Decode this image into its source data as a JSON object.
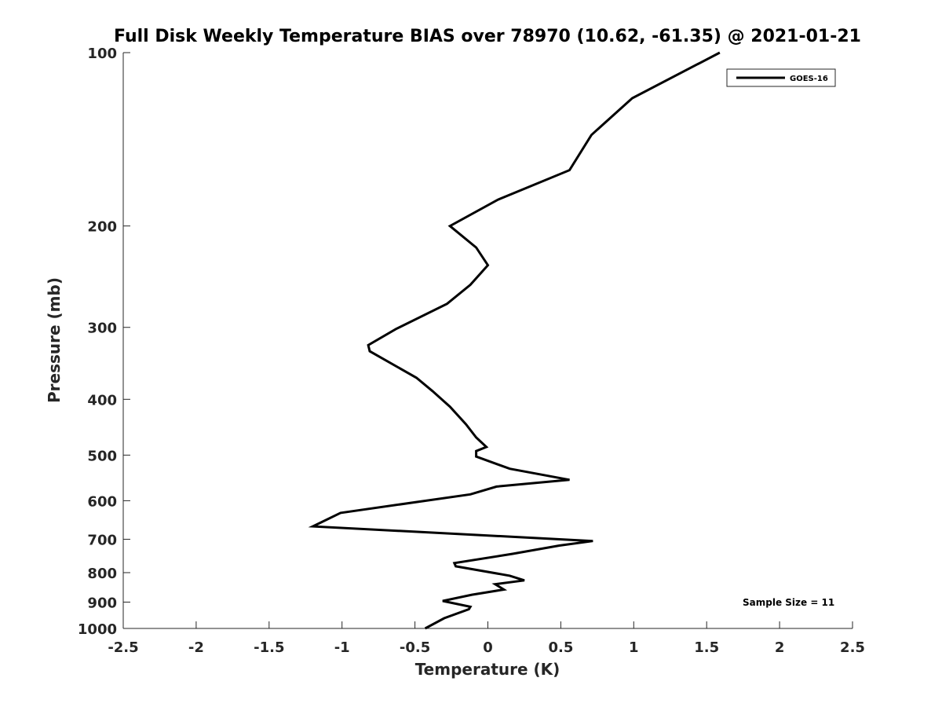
{
  "chart_data": {
    "type": "line",
    "title": "Full Disk Weekly Temperature BIAS over 78970 (10.62, -61.35) @ 2021-01-21",
    "xlabel": "Temperature (K)",
    "ylabel": "Pressure (mb)",
    "xlim": [
      -2.5,
      2.5
    ],
    "ylim": [
      100,
      1000
    ],
    "yscale": "log",
    "yreversed": true,
    "xticks": [
      -2.5,
      -2,
      -1.5,
      -1,
      -0.5,
      0,
      0.5,
      1,
      1.5,
      2,
      2.5
    ],
    "xtick_labels": [
      "-2.5",
      "-2",
      "-1.5",
      "-1",
      "-0.5",
      "0",
      "0.5",
      "1",
      "1.5",
      "2",
      "2.5"
    ],
    "yticks": [
      100,
      200,
      300,
      400,
      500,
      600,
      700,
      800,
      900,
      1000
    ],
    "ytick_labels": [
      "100",
      "200",
      "300",
      "400",
      "500",
      "600",
      "700",
      "800",
      "900",
      "1000"
    ],
    "grid": false,
    "legend_position": "top-right",
    "series": [
      {
        "name": "GOES-16",
        "color": "#000000",
        "x": [
          1.59,
          0.99,
          0.71,
          0.56,
          0.07,
          -0.26,
          -0.08,
          0.0,
          -0.12,
          -0.28,
          -0.63,
          -0.82,
          -0.81,
          -0.49,
          -0.38,
          -0.26,
          -0.15,
          -0.08,
          -0.01,
          -0.08,
          -0.08,
          0.15,
          0.56,
          0.06,
          -0.12,
          -1.01,
          -1.2,
          0.72,
          0.49,
          0.17,
          -0.23,
          -0.22,
          0.15,
          0.25,
          0.05,
          0.11,
          -0.11,
          -0.31,
          -0.12,
          -0.13,
          -0.3,
          -0.43
        ],
        "y": [
          100,
          120,
          139,
          160,
          180,
          200,
          218,
          234,
          253,
          273,
          302,
          322,
          330,
          367,
          387,
          412,
          442,
          466,
          484,
          492,
          503,
          528,
          552,
          567,
          585,
          630,
          665,
          705,
          718,
          742,
          770,
          780,
          810,
          825,
          838,
          856,
          874,
          896,
          917,
          926,
          960,
          1000
        ]
      }
    ],
    "annotation": "Sample Size = 11"
  }
}
